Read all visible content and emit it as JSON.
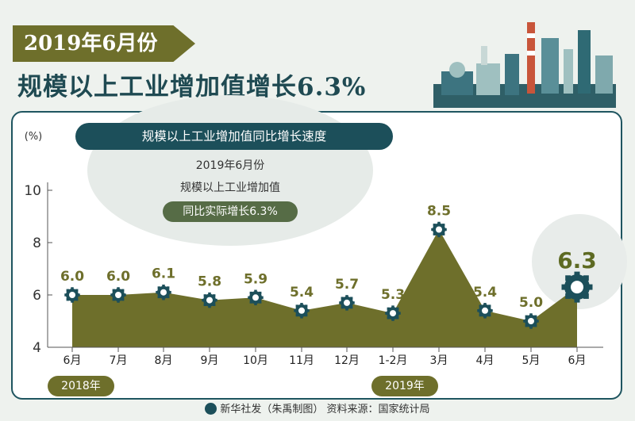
{
  "date_banner": "2019年6月份",
  "headline": "规模以上工业增加值增长6.3%",
  "subtitle_pill": "规模以上工业增加值同比增长速度",
  "callout": {
    "line1": "2019年6月份",
    "line2": "规模以上工业增加值",
    "badge": "同比实际增长6.3%"
  },
  "year_badges": [
    "2018年",
    "2019年"
  ],
  "footer": {
    "source": "新华社发（朱禹制图）  资料来源：国家统计局"
  },
  "colors": {
    "area_fill": "#6e6f2b",
    "header_dark": "#1c4f5a",
    "highlight_label": "#5d6a22"
  },
  "chart_data": {
    "type": "area",
    "ylabel": "(%)",
    "ylim": [
      4,
      10
    ],
    "yticks": [
      4,
      6,
      8,
      10
    ],
    "categories": [
      "6月",
      "7月",
      "8月",
      "9月",
      "10月",
      "11月",
      "12月",
      "1-2月",
      "3月",
      "4月",
      "5月",
      "6月"
    ],
    "values": [
      6.0,
      6.0,
      6.1,
      5.8,
      5.9,
      5.4,
      5.7,
      5.3,
      8.5,
      5.4,
      5.0,
      6.3
    ],
    "value_labels": [
      "6.0",
      "6.0",
      "6.1",
      "5.8",
      "5.9",
      "5.4",
      "5.7",
      "5.3",
      "8.5",
      "5.4",
      "5.0",
      "6.3"
    ],
    "grid": false,
    "legend": "none"
  }
}
